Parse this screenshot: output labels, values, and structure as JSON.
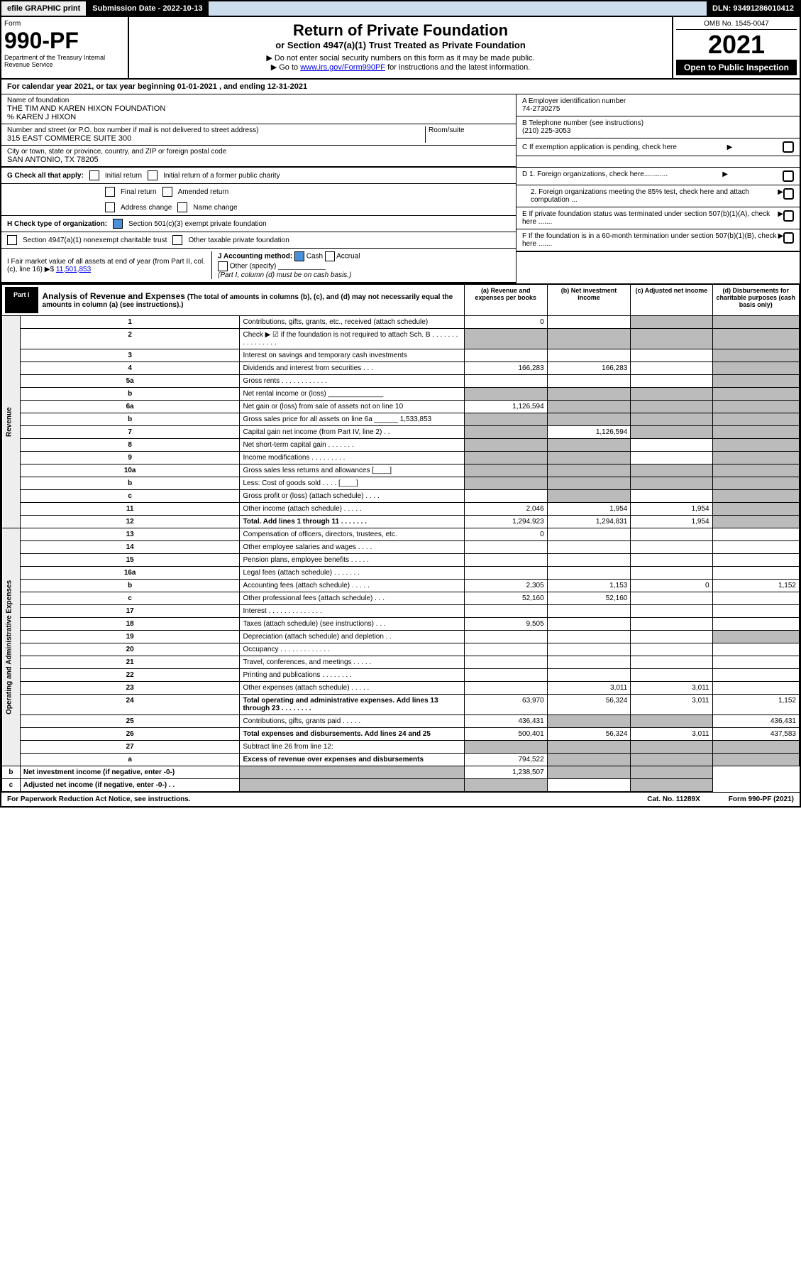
{
  "topbar": {
    "efile": "efile GRAPHIC print",
    "submission": "Submission Date - 2022-10-13",
    "dln": "DLN: 93491286010412"
  },
  "header": {
    "form_label": "Form",
    "form_num": "990-PF",
    "dept": "Department of the Treasury\nInternal Revenue Service",
    "title": "Return of Private Foundation",
    "subtitle": "or Section 4947(a)(1) Trust Treated as Private Foundation",
    "note1": "▶ Do not enter social security numbers on this form as it may be made public.",
    "note2": "▶ Go to www.irs.gov/Form990PF for instructions and the latest information.",
    "omb": "OMB No. 1545-0047",
    "year": "2021",
    "open": "Open to Public Inspection"
  },
  "calendar": "For calendar year 2021, or tax year beginning 01-01-2021          , and ending 12-31-2021",
  "foundation": {
    "name_label": "Name of foundation",
    "name": "THE TIM AND KAREN HIXON FOUNDATION",
    "care_of": "% KAREN J HIXON",
    "addr_label": "Number and street (or P.O. box number if mail is not delivered to street address)",
    "addr": "315 EAST COMMERCE SUITE 300",
    "room_label": "Room/suite",
    "city_label": "City or town, state or province, country, and ZIP or foreign postal code",
    "city": "SAN ANTONIO, TX  78205",
    "ein_label": "A Employer identification number",
    "ein": "74-2730275",
    "phone_label": "B Telephone number (see instructions)",
    "phone": "(210) 225-3053",
    "c_label": "C If exemption application is pending, check here"
  },
  "checks": {
    "g_label": "G Check all that apply:",
    "g_items": [
      "Initial return",
      "Initial return of a former public charity",
      "Final return",
      "Amended return",
      "Address change",
      "Name change"
    ],
    "h_label": "H Check type of organization:",
    "h1": "Section 501(c)(3) exempt private foundation",
    "h2": "Section 4947(a)(1) nonexempt charitable trust",
    "h3": "Other taxable private foundation",
    "i_label": "I Fair market value of all assets at end of year (from Part II, col. (c), line 16) ▶$",
    "i_val": "11,501,853",
    "j_label": "J Accounting method:",
    "j_cash": "Cash",
    "j_accrual": "Accrual",
    "j_other": "Other (specify)",
    "j_note": "(Part I, column (d) must be on cash basis.)",
    "d1": "D 1. Foreign organizations, check here............",
    "d2": "2. Foreign organizations meeting the 85% test, check here and attach computation ...",
    "e": "E If private foundation status was terminated under section 507(b)(1)(A), check here .......",
    "f": "F If the foundation is in a 60-month termination under section 507(b)(1)(B), check here ......."
  },
  "part1": {
    "label": "Part I",
    "title": "Analysis of Revenue and Expenses",
    "note": "(The total of amounts in columns (b), (c), and (d) may not necessarily equal the amounts in column (a) (see instructions).)",
    "cols": [
      "(a) Revenue and expenses per books",
      "(b) Net investment income",
      "(c) Adjusted net income",
      "(d) Disbursements for charitable purposes (cash basis only)"
    ]
  },
  "revenue_label": "Revenue",
  "expense_label": "Operating and Administrative Expenses",
  "rows": [
    {
      "n": "1",
      "d": "Contributions, gifts, grants, etc., received (attach schedule)",
      "a": "0",
      "b": "",
      "c": "",
      "dd": "",
      "bg": false,
      "cg": true,
      "dg": true
    },
    {
      "n": "2",
      "d": "Check ▶ ☑ if the foundation is not required to attach Sch. B   . . . . . . . . . . . . . . . .",
      "a": "",
      "b": "",
      "c": "",
      "dd": "",
      "ag": true,
      "bg": true,
      "cg": true,
      "dg": true
    },
    {
      "n": "3",
      "d": "Interest on savings and temporary cash investments",
      "a": "",
      "b": "",
      "c": "",
      "dd": "",
      "dg": true
    },
    {
      "n": "4",
      "d": "Dividends and interest from securities   . . .",
      "a": "166,283",
      "b": "166,283",
      "c": "",
      "dd": "",
      "dg": true
    },
    {
      "n": "5a",
      "d": "Gross rents   . . . . . . . . . . . .",
      "a": "",
      "b": "",
      "c": "",
      "dd": "",
      "dg": true
    },
    {
      "n": "b",
      "d": "Net rental income or (loss) ______________",
      "a": "",
      "b": "",
      "c": "",
      "dd": "",
      "ag": true,
      "bg": true,
      "cg": true,
      "dg": true
    },
    {
      "n": "6a",
      "d": "Net gain or (loss) from sale of assets not on line 10",
      "a": "1,126,594",
      "b": "",
      "c": "",
      "dd": "",
      "bg": true,
      "cg": true,
      "dg": true
    },
    {
      "n": "b",
      "d": "Gross sales price for all assets on line 6a ______ 1,533,853",
      "a": "",
      "b": "",
      "c": "",
      "dd": "",
      "ag": true,
      "bg": true,
      "cg": true,
      "dg": true
    },
    {
      "n": "7",
      "d": "Capital gain net income (from Part IV, line 2)   . .",
      "a": "",
      "b": "1,126,594",
      "c": "",
      "dd": "",
      "ag": true,
      "cg": true,
      "dg": true
    },
    {
      "n": "8",
      "d": "Net short-term capital gain   . . . . . . .",
      "a": "",
      "b": "",
      "c": "",
      "dd": "",
      "ag": true,
      "bg": true,
      "dg": true
    },
    {
      "n": "9",
      "d": "Income modifications   . . . . . . . . .",
      "a": "",
      "b": "",
      "c": "",
      "dd": "",
      "ag": true,
      "bg": true,
      "dg": true
    },
    {
      "n": "10a",
      "d": "Gross sales less returns and allowances  [____]",
      "a": "",
      "b": "",
      "c": "",
      "dd": "",
      "ag": true,
      "bg": true,
      "cg": true,
      "dg": true
    },
    {
      "n": "b",
      "d": "Less: Cost of goods sold   . . . .  [____]",
      "a": "",
      "b": "",
      "c": "",
      "dd": "",
      "ag": true,
      "bg": true,
      "cg": true,
      "dg": true
    },
    {
      "n": "c",
      "d": "Gross profit or (loss) (attach schedule)   . . . .",
      "a": "",
      "b": "",
      "c": "",
      "dd": "",
      "bg": true,
      "dg": true
    },
    {
      "n": "11",
      "d": "Other income (attach schedule)   . . . . .",
      "a": "2,046",
      "b": "1,954",
      "c": "1,954",
      "dd": "",
      "dg": true
    },
    {
      "n": "12",
      "d": "Total. Add lines 1 through 11   . . . . . . .",
      "a": "1,294,923",
      "b": "1,294,831",
      "c": "1,954",
      "dd": "",
      "bold": true,
      "dg": true
    },
    {
      "n": "13",
      "d": "Compensation of officers, directors, trustees, etc.",
      "a": "0",
      "b": "",
      "c": "",
      "dd": ""
    },
    {
      "n": "14",
      "d": "Other employee salaries and wages   . . . .",
      "a": "",
      "b": "",
      "c": "",
      "dd": ""
    },
    {
      "n": "15",
      "d": "Pension plans, employee benefits   . . . . .",
      "a": "",
      "b": "",
      "c": "",
      "dd": ""
    },
    {
      "n": "16a",
      "d": "Legal fees (attach schedule)   . . . . . . .",
      "a": "",
      "b": "",
      "c": "",
      "dd": ""
    },
    {
      "n": "b",
      "d": "Accounting fees (attach schedule)   . . . . .",
      "a": "2,305",
      "b": "1,153",
      "c": "0",
      "dd": "1,152"
    },
    {
      "n": "c",
      "d": "Other professional fees (attach schedule)   . . .",
      "a": "52,160",
      "b": "52,160",
      "c": "",
      "dd": ""
    },
    {
      "n": "17",
      "d": "Interest   . . . . . . . . . . . . . .",
      "a": "",
      "b": "",
      "c": "",
      "dd": ""
    },
    {
      "n": "18",
      "d": "Taxes (attach schedule) (see instructions)   . . .",
      "a": "9,505",
      "b": "",
      "c": "",
      "dd": ""
    },
    {
      "n": "19",
      "d": "Depreciation (attach schedule) and depletion   . .",
      "a": "",
      "b": "",
      "c": "",
      "dd": "",
      "dg": true
    },
    {
      "n": "20",
      "d": "Occupancy   . . . . . . . . . . . . .",
      "a": "",
      "b": "",
      "c": "",
      "dd": ""
    },
    {
      "n": "21",
      "d": "Travel, conferences, and meetings   . . . . .",
      "a": "",
      "b": "",
      "c": "",
      "dd": ""
    },
    {
      "n": "22",
      "d": "Printing and publications   . . . . . . . .",
      "a": "",
      "b": "",
      "c": "",
      "dd": ""
    },
    {
      "n": "23",
      "d": "Other expenses (attach schedule)   . . . . .",
      "a": "",
      "b": "3,011",
      "c": "3,011",
      "dd": ""
    },
    {
      "n": "24",
      "d": "Total operating and administrative expenses. Add lines 13 through 23   . . . . . . . .",
      "a": "63,970",
      "b": "56,324",
      "c": "3,011",
      "dd": "1,152",
      "bold": true
    },
    {
      "n": "25",
      "d": "Contributions, gifts, grants paid   . . . . .",
      "a": "436,431",
      "b": "",
      "c": "",
      "dd": "436,431",
      "bg": true,
      "cg": true
    },
    {
      "n": "26",
      "d": "Total expenses and disbursements. Add lines 24 and 25",
      "a": "500,401",
      "b": "56,324",
      "c": "3,011",
      "dd": "437,583",
      "bold": true
    },
    {
      "n": "27",
      "d": "Subtract line 26 from line 12:",
      "a": "",
      "b": "",
      "c": "",
      "dd": "",
      "ag": true,
      "bg": true,
      "cg": true,
      "dg": true
    },
    {
      "n": "a",
      "d": "Excess of revenue over expenses and disbursements",
      "a": "794,522",
      "b": "",
      "c": "",
      "dd": "",
      "bold": true,
      "bg": true,
      "cg": true,
      "dg": true
    },
    {
      "n": "b",
      "d": "Net investment income (if negative, enter -0-)",
      "a": "",
      "b": "1,238,507",
      "c": "",
      "dd": "",
      "bold": true,
      "ag": true,
      "cg": true,
      "dg": true
    },
    {
      "n": "c",
      "d": "Adjusted net income (if negative, enter -0-)   . .",
      "a": "",
      "b": "",
      "c": "",
      "dd": "",
      "bold": true,
      "ag": true,
      "bg": true,
      "dg": true
    }
  ],
  "footer": {
    "left": "For Paperwork Reduction Act Notice, see instructions.",
    "mid": "Cat. No. 11289X",
    "right": "Form 990-PF (2021)"
  }
}
